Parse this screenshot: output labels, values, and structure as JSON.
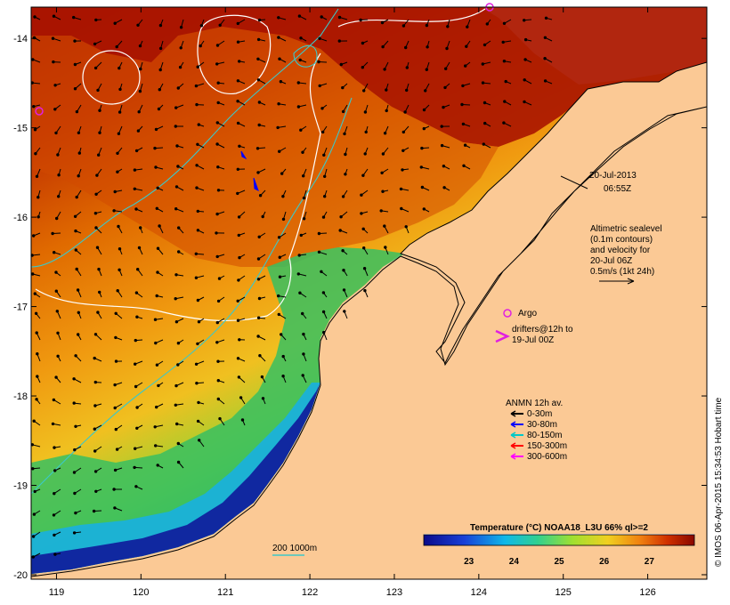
{
  "map": {
    "lon_ticks": [
      "119",
      "120",
      "121",
      "122",
      "123",
      "124",
      "125",
      "126"
    ],
    "lat_ticks": [
      "-14",
      "-15",
      "-16",
      "-17",
      "-18",
      "-19",
      "-20"
    ],
    "lon_range": [
      118.7,
      126.7
    ],
    "lat_range": [
      -20.05,
      -13.65
    ],
    "colors": {
      "land": "#fbc995",
      "warm": "#a61200",
      "cool": "#1c2ea3",
      "contour": "#ffffff",
      "isobath": "#3cc8c8",
      "argo": "#e020e0"
    }
  },
  "annotations": {
    "date": "20-Jul-2013",
    "time": "06:55Z",
    "altimetry_lines": [
      "Altimetric sealevel",
      "(0.1m contours)",
      "and velocity for",
      "20-Jul 06Z",
      "0.5m/s (1kt 24h)"
    ],
    "argo_label": "Argo",
    "drifters_lines": [
      "drifters@12h to",
      "19-Jul 00Z"
    ],
    "anmn_title": "ANMN 12h av.",
    "anmn_items": [
      {
        "label": "0-30m",
        "color": "#000000"
      },
      {
        "label": "30-80m",
        "color": "#0000ff"
      },
      {
        "label": "80-150m",
        "color": "#00c8c8"
      },
      {
        "label": "150-300m",
        "color": "#ff0000"
      },
      {
        "label": "300-600m",
        "color": "#ff00ff"
      }
    ],
    "isobath_label": "200  1000m"
  },
  "colorbar": {
    "title": "Temperature (°C) NOAA18_L3U 66% ql>=2",
    "ticks": [
      "23",
      "24",
      "25",
      "26",
      "27"
    ],
    "range": [
      22,
      28
    ]
  },
  "credit": "© IMOS 06-Apr-2015 15:34:53 Hobart time"
}
